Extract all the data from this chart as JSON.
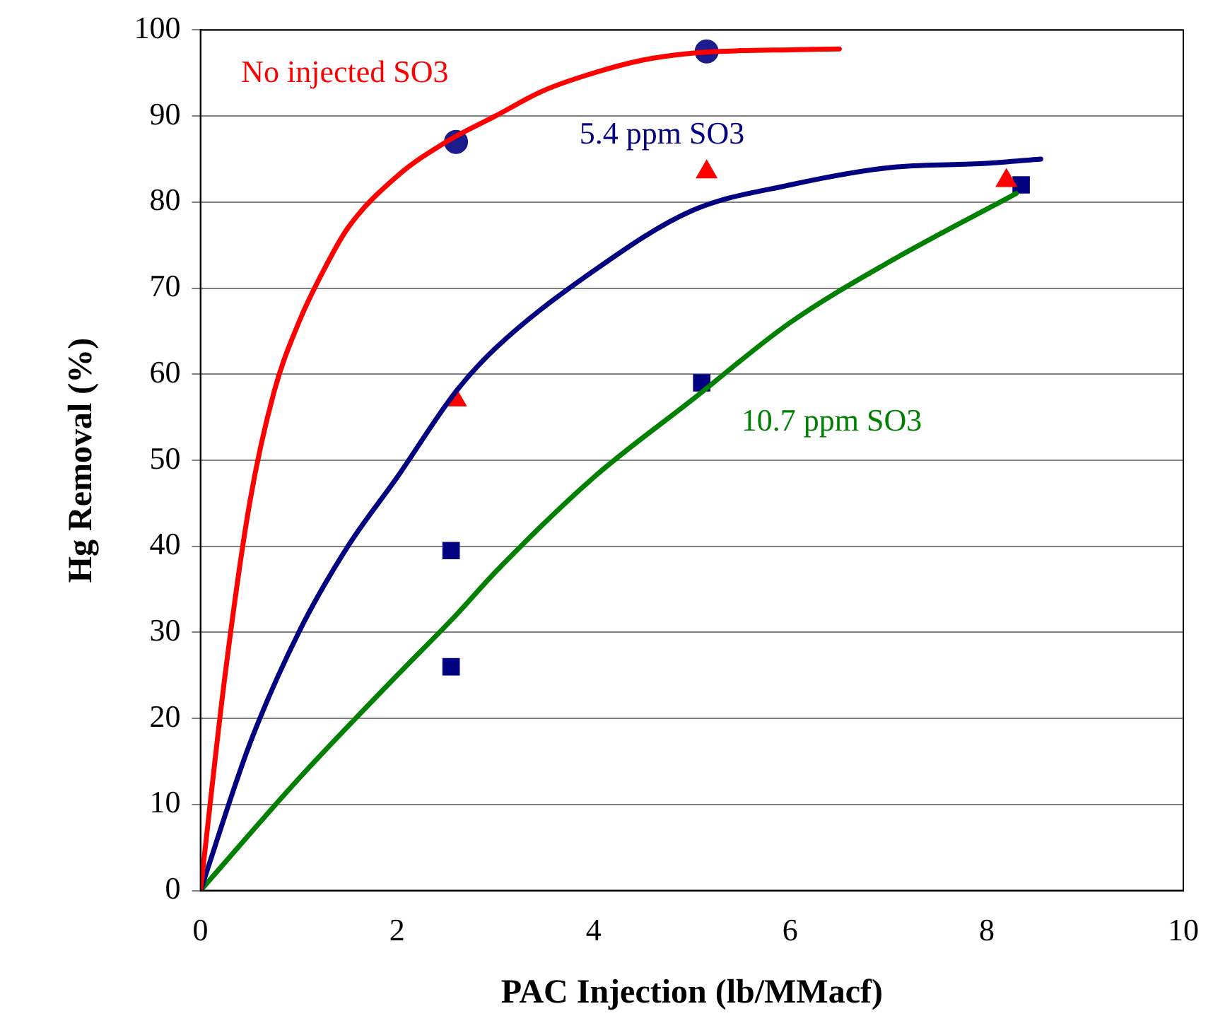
{
  "chart_data": {
    "type": "line",
    "xlabel": "PAC Injection (lb/MMacf)",
    "ylabel": "Hg Removal (%)",
    "xlim": [
      0,
      10
    ],
    "xticks": [
      0,
      2,
      4,
      6,
      8,
      10
    ],
    "ylim": [
      0,
      100
    ],
    "yticks": [
      0,
      10,
      20,
      30,
      40,
      50,
      60,
      70,
      80,
      90,
      100
    ],
    "grid": "y",
    "legend": false,
    "line_style": "solid",
    "series": [
      {
        "name": "No injected SO3",
        "type": "line",
        "color": "#ff0000",
        "marker": "none",
        "x": [
          0,
          0.25,
          0.5,
          0.75,
          1,
          1.25,
          1.5,
          2,
          2.5,
          3,
          3.5,
          4,
          4.5,
          5,
          5.5,
          6,
          6.5
        ],
        "values": [
          0,
          25,
          45,
          58,
          66,
          72,
          77,
          83,
          87,
          90,
          93,
          95,
          96.5,
          97.3,
          97.6,
          97.7,
          97.8
        ]
      },
      {
        "name": "5.4 ppm SO3",
        "type": "line",
        "color": "#000080",
        "marker": "none",
        "x": [
          0,
          0.5,
          1,
          1.5,
          2,
          2.6,
          3,
          4,
          5,
          6,
          7,
          8,
          8.55
        ],
        "values": [
          0,
          17,
          30,
          40,
          48,
          58,
          63,
          72,
          79,
          82,
          84,
          84.5,
          85
        ]
      },
      {
        "name": "10.7 ppm SO3",
        "type": "line",
        "color": "#008000",
        "marker": "none",
        "x": [
          0,
          1,
          2,
          2.6,
          3,
          4,
          5,
          6,
          7,
          8.3
        ],
        "values": [
          0,
          13,
          25,
          32,
          37,
          48,
          57,
          66,
          73,
          81
        ]
      },
      {
        "type": "scatter",
        "color": "#1c1c8c",
        "marker": "circle",
        "x": [
          2.6,
          5.15
        ],
        "values": [
          87,
          97.5
        ]
      },
      {
        "type": "scatter",
        "color": "#ff0000",
        "marker": "triangle",
        "x": [
          2.6,
          5.15,
          8.2
        ],
        "values": [
          57,
          83.5,
          82.5
        ]
      },
      {
        "type": "scatter",
        "color": "#000080",
        "marker": "square",
        "x": [
          2.55,
          2.55,
          5.1,
          8.35
        ],
        "values": [
          39.5,
          26,
          59,
          82
        ]
      }
    ]
  }
}
